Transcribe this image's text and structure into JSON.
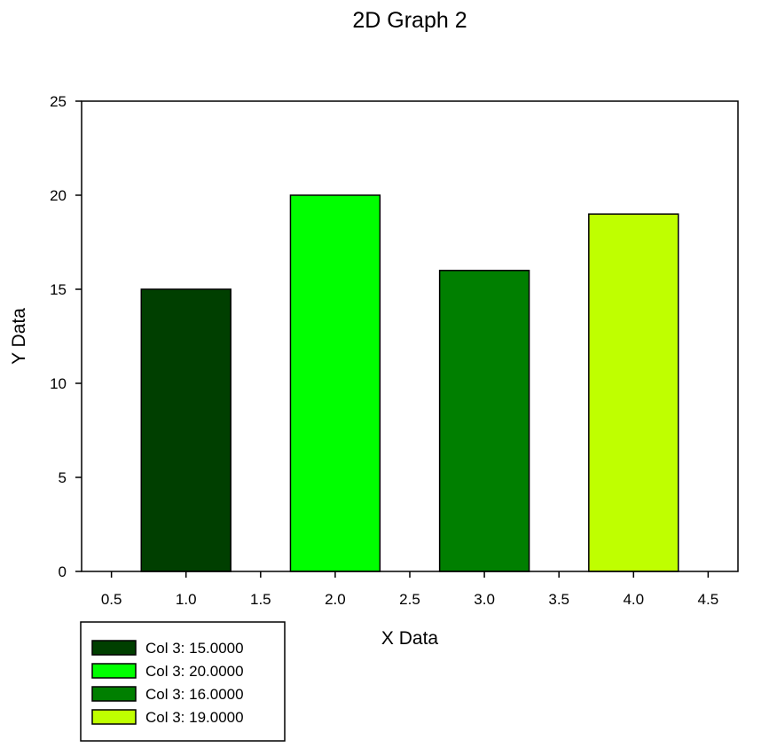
{
  "chart_data": {
    "type": "bar",
    "title": "2D Graph 2",
    "xlabel": "X Data",
    "ylabel": "Y Data",
    "xlim": [
      0.3,
      4.7
    ],
    "ylim": [
      0,
      25
    ],
    "x_ticks": [
      "0.5",
      "1.0",
      "1.5",
      "2.0",
      "2.5",
      "3.0",
      "3.5",
      "4.0",
      "4.5"
    ],
    "y_ticks": [
      "0",
      "5",
      "10",
      "15",
      "20",
      "25"
    ],
    "bar_width": 0.6,
    "grid": false,
    "legend_position": "bottom-left",
    "bars": [
      {
        "x": 1.0,
        "value": 15,
        "color": "#003f00"
      },
      {
        "x": 2.0,
        "value": 20,
        "color": "#00ff00"
      },
      {
        "x": 3.0,
        "value": 16,
        "color": "#007f00"
      },
      {
        "x": 4.0,
        "value": 19,
        "color": "#bfff00"
      }
    ],
    "legend": [
      {
        "label": "Col 3: 15.0000",
        "color": "#003f00"
      },
      {
        "label": "Col 3: 20.0000",
        "color": "#00ff00"
      },
      {
        "label": "Col 3: 16.0000",
        "color": "#007f00"
      },
      {
        "label": "Col 3: 19.0000",
        "color": "#bfff00"
      }
    ]
  }
}
